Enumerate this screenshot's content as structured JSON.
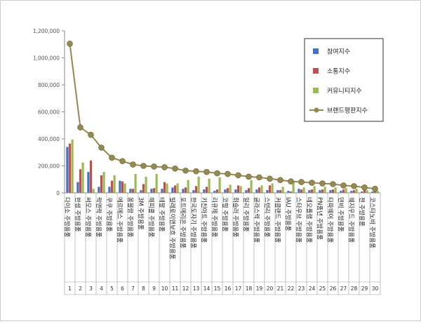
{
  "chart_data": {
    "type": "bar",
    "categories": [
      "다이소 주방용품",
      "한샘 주방용품",
      "써모스 주방용품",
      "락앤락 주방용품",
      "쿠쿠 주방용품",
      "에르메스 주방용품",
      "몽블랑 주방용품",
      "3M 주방용품",
      "해피콜 주방용품",
      "테팔 주방용품",
      "빌레로이앤보흐 주방용품",
      "포트메리온 주방용품",
      "한국도자기 주방용품",
      "키친아트 주방용품",
      "리큐제 주방용품",
      "코렐 주방용품",
      "휘슬러 주방용품",
      "일리 주방용품",
      "글라스락 주방용품",
      "스텐리 주방용품",
      "커클랜드 주방용품",
      "IAU 주방용품",
      "스타우브 주방용품",
      "네오플램 주방용품",
      "PN풍년 주방용품",
      "타파웨어 주방용품",
      "덴비 주방용품",
      "웨지우드 주방용품",
      "젠 주방용품",
      "코스타노바 주방용품"
    ],
    "index_labels": [
      "1",
      "2",
      "3",
      "4",
      "5",
      "6",
      "7",
      "8",
      "9",
      "10",
      "11",
      "12",
      "13",
      "14",
      "15",
      "16",
      "17",
      "18",
      "19",
      "20",
      "21",
      "22",
      "23",
      "24",
      "25",
      "26",
      "27",
      "28",
      "29",
      "30"
    ],
    "series": [
      {
        "name": "참여지수",
        "color": "#4472C4",
        "values": [
          340000,
          80000,
          155000,
          45000,
          45000,
          90000,
          30000,
          20000,
          30000,
          30000,
          40000,
          30000,
          20000,
          25000,
          15000,
          25000,
          25000,
          20000,
          25000,
          20000,
          20000,
          15000,
          30000,
          20000,
          20000,
          20000,
          15000,
          15000,
          10000,
          10000
        ]
      },
      {
        "name": "소통지수",
        "color": "#C0504D",
        "values": [
          365000,
          175000,
          240000,
          130000,
          90000,
          85000,
          30000,
          65000,
          35000,
          80000,
          55000,
          40000,
          50000,
          45000,
          25000,
          35000,
          55000,
          35000,
          40000,
          55000,
          20000,
          10000,
          25000,
          25000,
          25000,
          25000,
          25000,
          20000,
          20000,
          15000
        ]
      },
      {
        "name": "커뮤니티지수",
        "color": "#9BBB59",
        "values": [
          395000,
          225000,
          30000,
          155000,
          130000,
          70000,
          140000,
          120000,
          140000,
          70000,
          70000,
          95000,
          120000,
          105000,
          115000,
          60000,
          50000,
          95000,
          55000,
          70000,
          45000,
          80000,
          40000,
          50000,
          45000,
          40000,
          35000,
          30000,
          20000,
          15000
        ]
      },
      {
        "name": "브랜드평판지수",
        "type": "line",
        "color": "#938953",
        "values": [
          1105000,
          485000,
          430000,
          335000,
          260000,
          235000,
          210000,
          200000,
          195000,
          190000,
          180000,
          165000,
          160000,
          155000,
          145000,
          140000,
          130000,
          120000,
          115000,
          105000,
          95000,
          85000,
          80000,
          75000,
          70000,
          65000,
          55000,
          50000,
          40000,
          30000
        ]
      }
    ],
    "y_ticks": [
      "0",
      "200,000",
      "400,000",
      "600,000",
      "800,000",
      "1,000,000",
      "1,200,000"
    ],
    "ylim": [
      0,
      1200000
    ],
    "grid": false,
    "legend_position": "right"
  }
}
